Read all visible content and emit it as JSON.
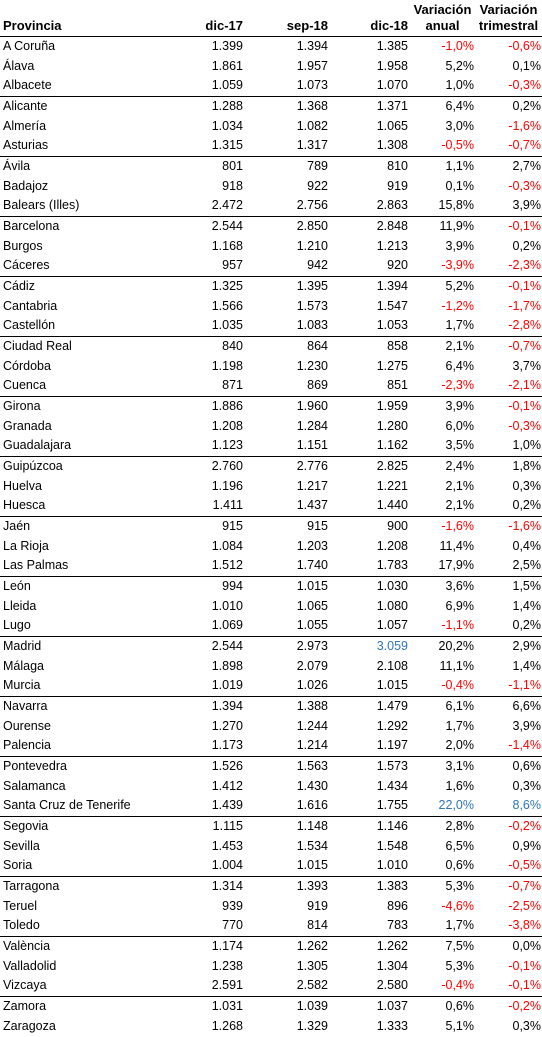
{
  "header": {
    "provincia": "Provincia",
    "dic17": "dic-17",
    "sep18": "sep-18",
    "dic18": "dic-18",
    "anual": [
      "Variación",
      "anual"
    ],
    "trimestral": [
      "Variación",
      "trimestral"
    ]
  },
  "colors": {
    "negative": "#ff0000",
    "highlight": "#2e75b6",
    "text": "#000000"
  },
  "rows": [
    {
      "provincia": "A Coruña",
      "dic17": "1.399",
      "sep18": "1.394",
      "dic18": "1.385",
      "anual": "-1,0%",
      "trimestral": "-0,6%",
      "gs": true,
      "ac": "red",
      "tc": "red"
    },
    {
      "provincia": "Álava",
      "dic17": "1.861",
      "sep18": "1.957",
      "dic18": "1.958",
      "anual": "5,2%",
      "trimestral": "0,1%"
    },
    {
      "provincia": "Albacete",
      "dic17": "1.059",
      "sep18": "1.073",
      "dic18": "1.070",
      "anual": "1,0%",
      "trimestral": "-0,3%",
      "tc": "red"
    },
    {
      "provincia": "Alicante",
      "dic17": "1.288",
      "sep18": "1.368",
      "dic18": "1.371",
      "anual": "6,4%",
      "trimestral": "0,2%",
      "gs": true
    },
    {
      "provincia": "Almería",
      "dic17": "1.034",
      "sep18": "1.082",
      "dic18": "1.065",
      "anual": "3,0%",
      "trimestral": "-1,6%",
      "tc": "red"
    },
    {
      "provincia": "Asturias",
      "dic17": "1.315",
      "sep18": "1.317",
      "dic18": "1.308",
      "anual": "-0,5%",
      "trimestral": "-0,7%",
      "ac": "red",
      "tc": "red"
    },
    {
      "provincia": "Ávila",
      "dic17": "801",
      "sep18": "789",
      "dic18": "810",
      "anual": "1,1%",
      "trimestral": "2,7%",
      "gs": true
    },
    {
      "provincia": "Badajoz",
      "dic17": "918",
      "sep18": "922",
      "dic18": "919",
      "anual": "0,1%",
      "trimestral": "-0,3%",
      "tc": "red"
    },
    {
      "provincia": "Balears (Illes)",
      "dic17": "2.472",
      "sep18": "2.756",
      "dic18": "2.863",
      "anual": "15,8%",
      "trimestral": "3,9%"
    },
    {
      "provincia": "Barcelona",
      "dic17": "2.544",
      "sep18": "2.850",
      "dic18": "2.848",
      "anual": "11,9%",
      "trimestral": "-0,1%",
      "gs": true,
      "tc": "red"
    },
    {
      "provincia": "Burgos",
      "dic17": "1.168",
      "sep18": "1.210",
      "dic18": "1.213",
      "anual": "3,9%",
      "trimestral": "0,2%"
    },
    {
      "provincia": "Cáceres",
      "dic17": "957",
      "sep18": "942",
      "dic18": "920",
      "anual": "-3,9%",
      "trimestral": "-2,3%",
      "ac": "red",
      "tc": "red"
    },
    {
      "provincia": "Cádiz",
      "dic17": "1.325",
      "sep18": "1.395",
      "dic18": "1.394",
      "anual": "5,2%",
      "trimestral": "-0,1%",
      "gs": true,
      "tc": "red"
    },
    {
      "provincia": "Cantabria",
      "dic17": "1.566",
      "sep18": "1.573",
      "dic18": "1.547",
      "anual": "-1,2%",
      "trimestral": "-1,7%",
      "ac": "red",
      "tc": "red"
    },
    {
      "provincia": "Castellón",
      "dic17": "1.035",
      "sep18": "1.083",
      "dic18": "1.053",
      "anual": "1,7%",
      "trimestral": "-2,8%",
      "tc": "red"
    },
    {
      "provincia": "Ciudad Real",
      "dic17": "840",
      "sep18": "864",
      "dic18": "858",
      "anual": "2,1%",
      "trimestral": "-0,7%",
      "gs": true,
      "tc": "red"
    },
    {
      "provincia": "Córdoba",
      "dic17": "1.198",
      "sep18": "1.230",
      "dic18": "1.275",
      "anual": "6,4%",
      "trimestral": "3,7%"
    },
    {
      "provincia": "Cuenca",
      "dic17": "871",
      "sep18": "869",
      "dic18": "851",
      "anual": "-2,3%",
      "trimestral": "-2,1%",
      "ac": "red",
      "tc": "red"
    },
    {
      "provincia": "Girona",
      "dic17": "1.886",
      "sep18": "1.960",
      "dic18": "1.959",
      "anual": "3,9%",
      "trimestral": "-0,1%",
      "gs": true,
      "tc": "red"
    },
    {
      "provincia": "Granada",
      "dic17": "1.208",
      "sep18": "1.284",
      "dic18": "1.280",
      "anual": "6,0%",
      "trimestral": "-0,3%",
      "tc": "red"
    },
    {
      "provincia": "Guadalajara",
      "dic17": "1.123",
      "sep18": "1.151",
      "dic18": "1.162",
      "anual": "3,5%",
      "trimestral": "1,0%"
    },
    {
      "provincia": "Guipúzcoa",
      "dic17": "2.760",
      "sep18": "2.776",
      "dic18": "2.825",
      "anual": "2,4%",
      "trimestral": "1,8%",
      "gs": true
    },
    {
      "provincia": "Huelva",
      "dic17": "1.196",
      "sep18": "1.217",
      "dic18": "1.221",
      "anual": "2,1%",
      "trimestral": "0,3%"
    },
    {
      "provincia": "Huesca",
      "dic17": "1.411",
      "sep18": "1.437",
      "dic18": "1.440",
      "anual": "2,1%",
      "trimestral": "0,2%"
    },
    {
      "provincia": "Jaén",
      "dic17": "915",
      "sep18": "915",
      "dic18": "900",
      "anual": "-1,6%",
      "trimestral": "-1,6%",
      "gs": true,
      "ac": "red",
      "tc": "red"
    },
    {
      "provincia": "La Rioja",
      "dic17": "1.084",
      "sep18": "1.203",
      "dic18": "1.208",
      "anual": "11,4%",
      "trimestral": "0,4%"
    },
    {
      "provincia": "Las Palmas",
      "dic17": "1.512",
      "sep18": "1.740",
      "dic18": "1.783",
      "anual": "17,9%",
      "trimestral": "2,5%"
    },
    {
      "provincia": "León",
      "dic17": "994",
      "sep18": "1.015",
      "dic18": "1.030",
      "anual": "3,6%",
      "trimestral": "1,5%",
      "gs": true
    },
    {
      "provincia": "Lleida",
      "dic17": "1.010",
      "sep18": "1.065",
      "dic18": "1.080",
      "anual": "6,9%",
      "trimestral": "1,4%"
    },
    {
      "provincia": "Lugo",
      "dic17": "1.069",
      "sep18": "1.055",
      "dic18": "1.057",
      "anual": "-1,1%",
      "trimestral": "0,2%",
      "ac": "red"
    },
    {
      "provincia": "Madrid",
      "dic17": "2.544",
      "sep18": "2.973",
      "dic18": "3.059",
      "anual": "20,2%",
      "trimestral": "2,9%",
      "gs": true,
      "dc": "blue"
    },
    {
      "provincia": "Málaga",
      "dic17": "1.898",
      "sep18": "2.079",
      "dic18": "2.108",
      "anual": "11,1%",
      "trimestral": "1,4%"
    },
    {
      "provincia": "Murcia",
      "dic17": "1.019",
      "sep18": "1.026",
      "dic18": "1.015",
      "anual": "-0,4%",
      "trimestral": "-1,1%",
      "ac": "red",
      "tc": "red"
    },
    {
      "provincia": "Navarra",
      "dic17": "1.394",
      "sep18": "1.388",
      "dic18": "1.479",
      "anual": "6,1%",
      "trimestral": "6,6%",
      "gs": true
    },
    {
      "provincia": "Ourense",
      "dic17": "1.270",
      "sep18": "1.244",
      "dic18": "1.292",
      "anual": "1,7%",
      "trimestral": "3,9%"
    },
    {
      "provincia": "Palencia",
      "dic17": "1.173",
      "sep18": "1.214",
      "dic18": "1.197",
      "anual": "2,0%",
      "trimestral": "-1,4%",
      "tc": "red"
    },
    {
      "provincia": "Pontevedra",
      "dic17": "1.526",
      "sep18": "1.563",
      "dic18": "1.573",
      "anual": "3,1%",
      "trimestral": "0,6%",
      "gs": true
    },
    {
      "provincia": "Salamanca",
      "dic17": "1.412",
      "sep18": "1.430",
      "dic18": "1.434",
      "anual": "1,6%",
      "trimestral": "0,3%"
    },
    {
      "provincia": "Santa Cruz de Tenerife",
      "dic17": "1.439",
      "sep18": "1.616",
      "dic18": "1.755",
      "anual": "22,0%",
      "trimestral": "8,6%",
      "ac": "blue",
      "tc": "blue"
    },
    {
      "provincia": "Segovia",
      "dic17": "1.115",
      "sep18": "1.148",
      "dic18": "1.146",
      "anual": "2,8%",
      "trimestral": "-0,2%",
      "gs": true,
      "tc": "red"
    },
    {
      "provincia": "Sevilla",
      "dic17": "1.453",
      "sep18": "1.534",
      "dic18": "1.548",
      "anual": "6,5%",
      "trimestral": "0,9%"
    },
    {
      "provincia": "Soria",
      "dic17": "1.004",
      "sep18": "1.015",
      "dic18": "1.010",
      "anual": "0,6%",
      "trimestral": "-0,5%",
      "tc": "red"
    },
    {
      "provincia": "Tarragona",
      "dic17": "1.314",
      "sep18": "1.393",
      "dic18": "1.383",
      "anual": "5,3%",
      "trimestral": "-0,7%",
      "gs": true,
      "tc": "red"
    },
    {
      "provincia": "Teruel",
      "dic17": "939",
      "sep18": "919",
      "dic18": "896",
      "anual": "-4,6%",
      "trimestral": "-2,5%",
      "ac": "red",
      "tc": "red"
    },
    {
      "provincia": "Toledo",
      "dic17": "770",
      "sep18": "814",
      "dic18": "783",
      "anual": "1,7%",
      "trimestral": "-3,8%",
      "tc": "red"
    },
    {
      "provincia": "València",
      "dic17": "1.174",
      "sep18": "1.262",
      "dic18": "1.262",
      "anual": "7,5%",
      "trimestral": "0,0%",
      "gs": true
    },
    {
      "provincia": "Valladolid",
      "dic17": "1.238",
      "sep18": "1.305",
      "dic18": "1.304",
      "anual": "5,3%",
      "trimestral": "-0,1%",
      "tc": "red"
    },
    {
      "provincia": "Vizcaya",
      "dic17": "2.591",
      "sep18": "2.582",
      "dic18": "2.580",
      "anual": "-0,4%",
      "trimestral": "-0,1%",
      "ac": "red",
      "tc": "red"
    },
    {
      "provincia": "Zamora",
      "dic17": "1.031",
      "sep18": "1.039",
      "dic18": "1.037",
      "anual": "0,6%",
      "trimestral": "-0,2%",
      "gs": true,
      "tc": "red"
    },
    {
      "provincia": "Zaragoza",
      "dic17": "1.268",
      "sep18": "1.329",
      "dic18": "1.333",
      "anual": "5,1%",
      "trimestral": "0,3%"
    }
  ]
}
